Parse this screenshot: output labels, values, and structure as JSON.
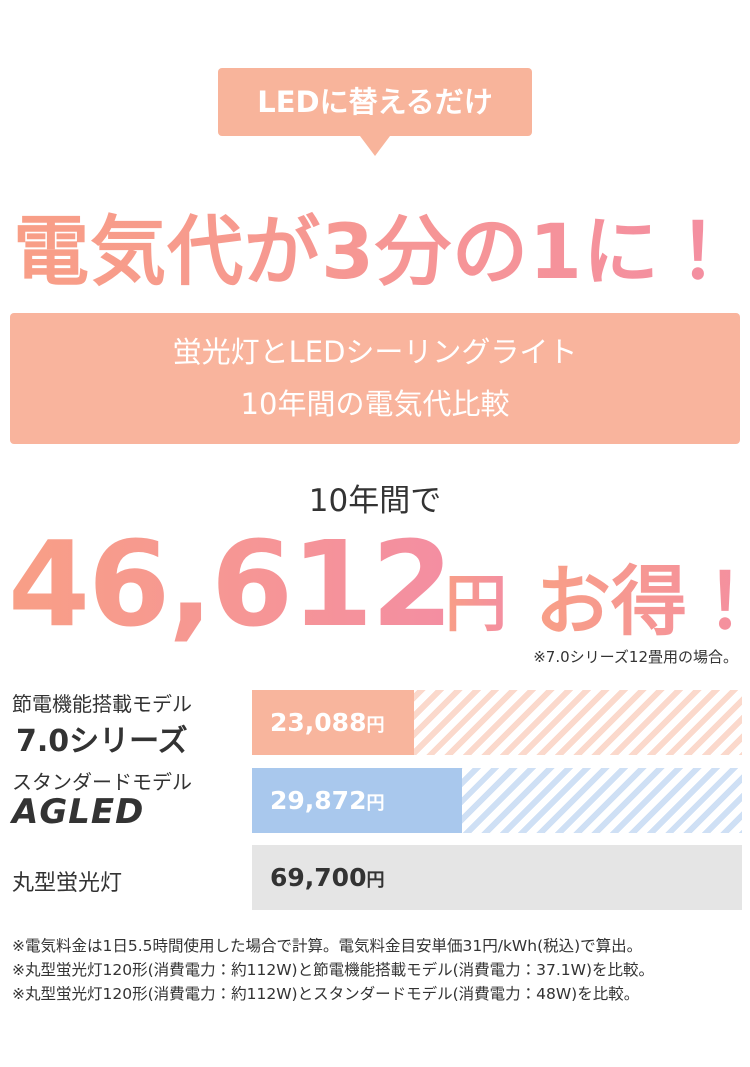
{
  "badge": "LEDに替えるだけ",
  "headline": "電気代が3分の1に！",
  "subtitle_lines": [
    "蛍光灯とLEDシーリングライト",
    "10年間の電気代比較"
  ],
  "savings": {
    "intro": "10年間で",
    "amount": "46,612",
    "unit": "円",
    "suffix": "お得！",
    "note": "※7.0シリーズ12畳用の場合。"
  },
  "comparison": {
    "unit": "円",
    "items": [
      {
        "label": "節電機能搭載モデル",
        "name": "7.0シリーズ",
        "value": 23088,
        "value_label": "23,088",
        "color": "#f8b59d"
      },
      {
        "label": "スタンダードモデル",
        "name": "AGLED",
        "value": 29872,
        "value_label": "29,872",
        "color": "#a9c8ed"
      },
      {
        "label": "丸型蛍光灯",
        "value": 69700,
        "value_label": "69,700",
        "color": "#e5e5e5"
      }
    ]
  },
  "footnotes": [
    "※電気料金は1日5.5時間使用した場合で計算。電気料金目安単価31円/kWh(税込)で算出。",
    "※丸型蛍光灯120形(消費電力：約112W)と節電機能搭載モデル(消費電力：37.1W)を比較。",
    "※丸型蛍光灯120形(消費電力：約112W)とスタンダードモデル(消費電力：48W)を比較。"
  ]
}
